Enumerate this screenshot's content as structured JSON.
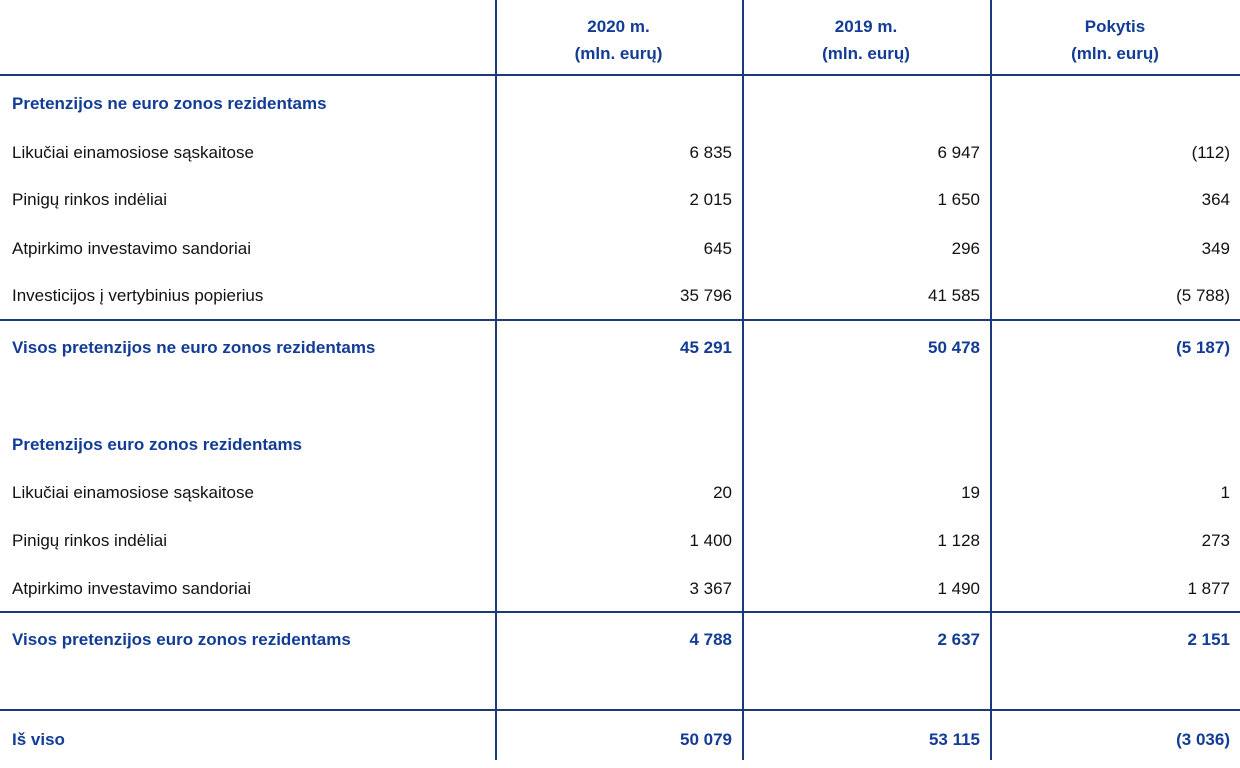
{
  "table": {
    "header": [
      [
        "2020 m.",
        "(mln. eurų)"
      ],
      [
        "2019 m.",
        "(mln. eurų)"
      ],
      [
        "Pokytis",
        "(mln. eurų)"
      ]
    ],
    "rows": [
      [
        "Pretenzijos ne euro zonos rezidentams"
      ],
      [
        "Likučiai einamosiose sąskaitose",
        "6 835",
        "6 947",
        "(112)"
      ],
      [
        "Pinigų rinkos indėliai",
        "2 015",
        "1 650",
        "364"
      ],
      [
        "Atpirkimo investavimo sandoriai",
        "645",
        "296",
        "349"
      ],
      [
        "Investicijos į vertybinius popierius",
        "35 796",
        "41 585",
        "(5 788)"
      ],
      [
        "Visos pretenzijos ne euro zonos rezidentams",
        "45 291",
        "50 478",
        "(5 187)"
      ],
      [
        "Pretenzijos euro zonos rezidentams"
      ],
      [
        "Likučiai einamosiose sąskaitose",
        "20",
        "19",
        "1"
      ],
      [
        "Pinigų rinkos indėliai",
        "1 400",
        "1 128",
        "273"
      ],
      [
        "Atpirkimo investavimo sandoriai",
        "3 367",
        "1 490",
        "1 877"
      ],
      [
        "Visos pretenzijos euro zonos rezidentams",
        "4 788",
        "2 637",
        "2 151"
      ],
      [
        "Iš viso",
        "50 079",
        "53 115",
        "(3 036)"
      ]
    ]
  }
}
